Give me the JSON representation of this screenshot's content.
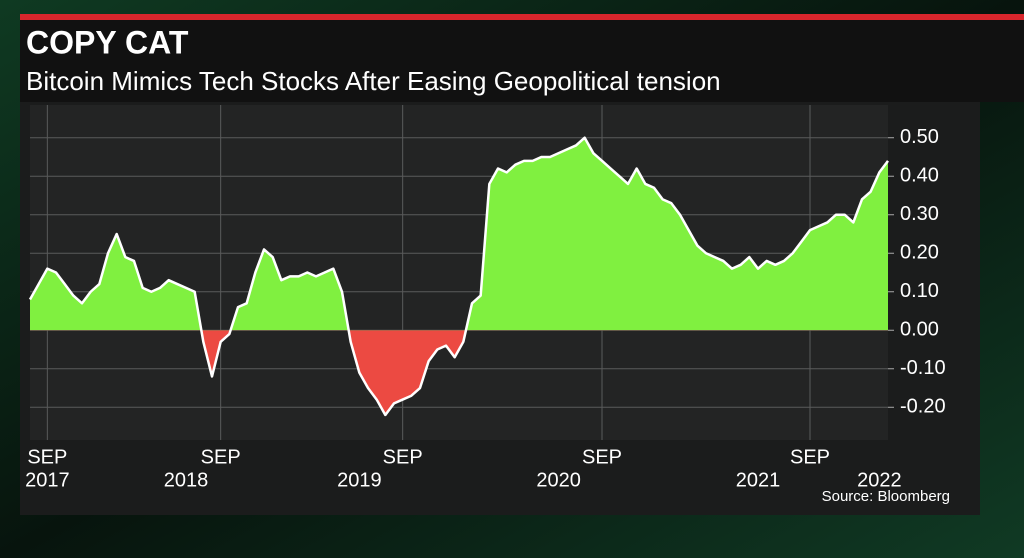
{
  "chart_data": {
    "type": "area",
    "title": "COPY CAT",
    "subtitle": "Bitcoin Mimics Tech Stocks After Easing Geopolitical tension",
    "source": "Source: Bloomberg",
    "categories": [
      null,
      null,
      [
        "SEP",
        "2017"
      ],
      null,
      null,
      null,
      null,
      null,
      null,
      null,
      null,
      null,
      null,
      null,
      null,
      null,
      null,
      null,
      "2018",
      null,
      null,
      null,
      "SEP",
      null,
      null,
      null,
      null,
      null,
      null,
      null,
      null,
      null,
      null,
      null,
      null,
      null,
      null,
      null,
      "2019",
      null,
      null,
      null,
      null,
      "SEP",
      null,
      null,
      null,
      null,
      null,
      null,
      null,
      null,
      null,
      null,
      null,
      null,
      null,
      null,
      null,
      null,
      null,
      "2020",
      null,
      null,
      null,
      null,
      "SEP",
      null,
      null,
      null,
      null,
      null,
      null,
      null,
      null,
      null,
      null,
      null,
      null,
      null,
      null,
      null,
      null,
      null,
      "2021",
      null,
      null,
      null,
      null,
      null,
      "SEP",
      null,
      null,
      null,
      null,
      null,
      null,
      null,
      "2022",
      null
    ],
    "values": [
      0.08,
      0.12,
      0.16,
      0.15,
      0.12,
      0.09,
      0.07,
      0.1,
      0.12,
      0.2,
      0.25,
      0.19,
      0.18,
      0.11,
      0.1,
      0.11,
      0.13,
      0.12,
      0.11,
      0.1,
      -0.03,
      -0.12,
      -0.03,
      -0.01,
      0.06,
      0.07,
      0.15,
      0.21,
      0.19,
      0.13,
      0.14,
      0.14,
      0.15,
      0.14,
      0.15,
      0.16,
      0.1,
      -0.03,
      -0.11,
      -0.15,
      -0.18,
      -0.22,
      -0.19,
      -0.18,
      -0.17,
      -0.15,
      -0.08,
      -0.05,
      -0.04,
      -0.07,
      -0.03,
      0.07,
      0.09,
      0.38,
      0.42,
      0.41,
      0.43,
      0.44,
      0.44,
      0.45,
      0.45,
      0.46,
      0.47,
      0.48,
      0.5,
      0.46,
      0.44,
      0.42,
      0.4,
      0.38,
      0.42,
      0.38,
      0.37,
      0.34,
      0.33,
      0.3,
      0.26,
      0.22,
      0.2,
      0.19,
      0.18,
      0.16,
      0.17,
      0.19,
      0.16,
      0.18,
      0.17,
      0.18,
      0.2,
      0.23,
      0.26,
      0.27,
      0.28,
      0.3,
      0.3,
      0.28,
      0.34,
      0.36,
      0.41,
      0.44
    ],
    "color": "#ffffff",
    "positive_color": "#80f040",
    "negative_color": "#ec4a42",
    "ylim": [
      -0.285,
      0.585
    ],
    "yticks": [
      {
        "value": 0.5,
        "label": "0.50"
      },
      {
        "value": 0.4,
        "label": "0.40"
      },
      {
        "value": 0.3,
        "label": "0.30"
      },
      {
        "value": 0.2,
        "label": "0.20"
      },
      {
        "value": 0.1,
        "label": "0.10"
      },
      {
        "value": 0,
        "label": "0.00"
      },
      {
        "value": -0.1,
        "label": "-0.10"
      },
      {
        "value": -0.2,
        "label": "-0.20"
      }
    ],
    "grid": true
  }
}
